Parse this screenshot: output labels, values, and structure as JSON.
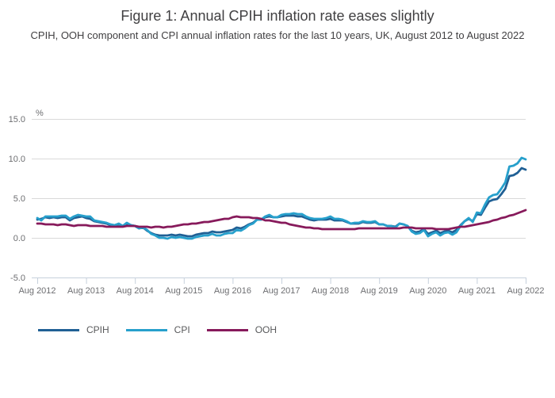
{
  "header": {
    "title": "Figure 1: Annual CPIH inflation rate eases slightly",
    "subtitle": "CPIH, OOH component and CPI annual inflation rates for the last 10 years, UK, August 2012 to August 2022"
  },
  "chart_data": {
    "type": "line",
    "title": "Figure 1: Annual CPIH inflation rate eases slightly",
    "subtitle": "CPIH, OOH component and CPI annual inflation rates for the last 10 years, UK, August 2012 to August 2022",
    "unit_label": "%",
    "grid": true,
    "legend_position": "bottom-left",
    "ylim": [
      -5.0,
      15.0
    ],
    "y_ticks": [
      -5.0,
      0.0,
      5.0,
      10.0,
      15.0
    ],
    "x_tick_labels": [
      "Aug 2012",
      "Aug 2013",
      "Aug 2014",
      "Aug 2015",
      "Aug 2016",
      "Aug 2017",
      "Aug 2018",
      "Aug 2019",
      "Aug 2020",
      "Aug 2021",
      "Aug 2022"
    ],
    "x_frequency": "monthly",
    "x_range": [
      "Aug 2012",
      "Aug 2022"
    ],
    "series": [
      {
        "name": "CPIH",
        "color": "#206095",
        "values": [
          2.3,
          2.4,
          2.6,
          2.5,
          2.6,
          2.5,
          2.6,
          2.6,
          2.2,
          2.5,
          2.6,
          2.7,
          2.5,
          2.4,
          2.1,
          2.0,
          1.9,
          1.8,
          1.6,
          1.6,
          1.7,
          1.5,
          1.7,
          1.6,
          1.5,
          1.2,
          1.3,
          0.9,
          0.6,
          0.4,
          0.3,
          0.3,
          0.3,
          0.4,
          0.3,
          0.4,
          0.3,
          0.2,
          0.2,
          0.4,
          0.5,
          0.6,
          0.6,
          0.8,
          0.7,
          0.7,
          0.8,
          0.9,
          1.0,
          1.3,
          1.2,
          1.4,
          1.7,
          1.9,
          2.3,
          2.3,
          2.6,
          2.7,
          2.6,
          2.6,
          2.7,
          2.8,
          2.8,
          2.8,
          2.7,
          2.7,
          2.5,
          2.3,
          2.2,
          2.3,
          2.3,
          2.3,
          2.4,
          2.2,
          2.2,
          2.2,
          2.0,
          1.8,
          1.8,
          1.8,
          2.0,
          1.9,
          1.9,
          2.0,
          1.7,
          1.7,
          1.5,
          1.5,
          1.4,
          1.8,
          1.7,
          1.5,
          0.9,
          0.7,
          0.8,
          1.1,
          0.5,
          0.7,
          0.9,
          0.6,
          0.8,
          0.9,
          0.7,
          1.0,
          1.6,
          2.1,
          2.4,
          2.1,
          3.0,
          2.9,
          3.8,
          4.6,
          4.8,
          4.9,
          5.5,
          6.2,
          7.8,
          7.9,
          8.2,
          8.8,
          8.6
        ]
      },
      {
        "name": "CPI",
        "color": "#27A0CC",
        "values": [
          2.5,
          2.2,
          2.7,
          2.7,
          2.7,
          2.7,
          2.8,
          2.8,
          2.4,
          2.7,
          2.9,
          2.8,
          2.7,
          2.7,
          2.2,
          2.1,
          2.0,
          1.9,
          1.7,
          1.6,
          1.8,
          1.5,
          1.9,
          1.6,
          1.5,
          1.2,
          1.3,
          1.0,
          0.5,
          0.3,
          0.0,
          0.0,
          -0.1,
          0.1,
          0.0,
          0.1,
          0.0,
          -0.1,
          -0.1,
          0.1,
          0.2,
          0.3,
          0.3,
          0.5,
          0.3,
          0.3,
          0.5,
          0.6,
          0.6,
          1.0,
          0.9,
          1.2,
          1.6,
          1.8,
          2.3,
          2.3,
          2.7,
          2.9,
          2.6,
          2.6,
          2.9,
          3.0,
          3.0,
          3.1,
          3.0,
          3.0,
          2.7,
          2.5,
          2.4,
          2.4,
          2.4,
          2.5,
          2.7,
          2.4,
          2.4,
          2.3,
          2.1,
          1.8,
          1.9,
          1.9,
          2.1,
          2.0,
          2.0,
          2.1,
          1.7,
          1.7,
          1.5,
          1.5,
          1.3,
          1.8,
          1.7,
          1.5,
          0.8,
          0.5,
          0.6,
          1.0,
          0.2,
          0.5,
          0.7,
          0.3,
          0.6,
          0.7,
          0.4,
          0.7,
          1.5,
          2.1,
          2.5,
          2.0,
          3.2,
          3.1,
          4.2,
          5.1,
          5.4,
          5.5,
          6.2,
          7.0,
          9.0,
          9.1,
          9.4,
          10.1,
          9.9
        ]
      },
      {
        "name": "OOH",
        "color": "#871A5B",
        "values": [
          1.8,
          1.8,
          1.7,
          1.7,
          1.7,
          1.6,
          1.7,
          1.7,
          1.6,
          1.5,
          1.6,
          1.6,
          1.6,
          1.5,
          1.5,
          1.5,
          1.5,
          1.4,
          1.4,
          1.4,
          1.4,
          1.4,
          1.5,
          1.5,
          1.5,
          1.4,
          1.4,
          1.4,
          1.3,
          1.4,
          1.4,
          1.3,
          1.4,
          1.4,
          1.5,
          1.6,
          1.7,
          1.7,
          1.8,
          1.8,
          1.9,
          2.0,
          2.0,
          2.1,
          2.2,
          2.3,
          2.4,
          2.4,
          2.6,
          2.7,
          2.6,
          2.6,
          2.6,
          2.5,
          2.5,
          2.4,
          2.2,
          2.2,
          2.1,
          2.0,
          1.9,
          1.9,
          1.7,
          1.6,
          1.5,
          1.4,
          1.3,
          1.3,
          1.2,
          1.2,
          1.1,
          1.1,
          1.1,
          1.1,
          1.1,
          1.1,
          1.1,
          1.1,
          1.1,
          1.2,
          1.2,
          1.2,
          1.2,
          1.2,
          1.2,
          1.2,
          1.2,
          1.2,
          1.2,
          1.2,
          1.3,
          1.3,
          1.3,
          1.2,
          1.2,
          1.2,
          1.2,
          1.2,
          1.1,
          1.1,
          1.1,
          1.1,
          1.2,
          1.3,
          1.4,
          1.4,
          1.5,
          1.6,
          1.7,
          1.8,
          1.9,
          2.0,
          2.2,
          2.3,
          2.5,
          2.6,
          2.8,
          2.9,
          3.1,
          3.3,
          3.5
        ]
      }
    ]
  },
  "style": {
    "grid_color": "#d9d9d9",
    "axis_color": "#c6d0dc",
    "axis_label_color": "#6d6e71",
    "text_color": "#414042"
  }
}
